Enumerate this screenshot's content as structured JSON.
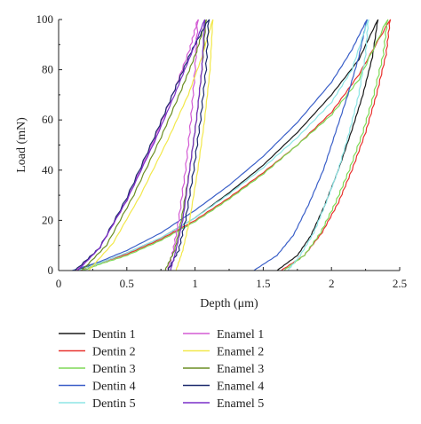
{
  "chart_data": {
    "type": "line",
    "xlabel": "Depth (μm)",
    "ylabel": "Load (mN)",
    "xlim": [
      0,
      2.5
    ],
    "ylim": [
      0,
      100
    ],
    "x_ticks": [
      "0",
      "0.5",
      "1",
      "1.5",
      "2",
      "2.5"
    ],
    "y_ticks": [
      "0",
      "20",
      "40",
      "60",
      "80",
      "100"
    ],
    "grid": false,
    "legend_position": "bottom",
    "series": [
      {
        "name": "Dentin 1",
        "color": "#1a1a1a",
        "loading": [
          [
            0.12,
            0
          ],
          [
            0.3,
            3
          ],
          [
            0.5,
            7
          ],
          [
            0.75,
            13
          ],
          [
            1.0,
            21
          ],
          [
            1.25,
            31
          ],
          [
            1.5,
            42
          ],
          [
            1.75,
            55
          ],
          [
            2.0,
            70
          ],
          [
            2.2,
            84
          ],
          [
            2.34,
            100
          ]
        ],
        "unloading": [
          [
            2.34,
            100
          ],
          [
            2.3,
            85
          ],
          [
            2.23,
            70
          ],
          [
            2.15,
            56
          ],
          [
            2.05,
            40
          ],
          [
            1.95,
            26
          ],
          [
            1.85,
            14
          ],
          [
            1.75,
            6
          ],
          [
            1.6,
            0
          ]
        ]
      },
      {
        "name": "Dentin 2",
        "color": "#e8322e",
        "loading": [
          [
            0.15,
            0
          ],
          [
            0.3,
            3
          ],
          [
            0.5,
            6.5
          ],
          [
            0.75,
            12.5
          ],
          [
            1.0,
            20
          ],
          [
            1.25,
            29
          ],
          [
            1.5,
            39
          ],
          [
            1.75,
            50
          ],
          [
            2.0,
            63
          ],
          [
            2.2,
            78
          ],
          [
            2.43,
            100
          ]
        ],
        "unloading": [
          [
            2.43,
            100
          ],
          [
            2.4,
            86
          ],
          [
            2.33,
            70
          ],
          [
            2.25,
            55
          ],
          [
            2.15,
            40
          ],
          [
            2.05,
            27
          ],
          [
            1.93,
            15
          ],
          [
            1.8,
            6
          ],
          [
            1.63,
            0
          ]
        ]
      },
      {
        "name": "Dentin 3",
        "color": "#7ed957",
        "loading": [
          [
            0.18,
            0
          ],
          [
            0.3,
            2.5
          ],
          [
            0.5,
            6
          ],
          [
            0.75,
            12
          ],
          [
            1.0,
            19.5
          ],
          [
            1.25,
            28.5
          ],
          [
            1.5,
            38.5
          ],
          [
            1.75,
            50
          ],
          [
            2.0,
            62
          ],
          [
            2.2,
            76
          ],
          [
            2.41,
            100
          ]
        ],
        "unloading": [
          [
            2.41,
            100
          ],
          [
            2.38,
            86
          ],
          [
            2.31,
            70
          ],
          [
            2.23,
            55
          ],
          [
            2.13,
            40
          ],
          [
            2.03,
            27
          ],
          [
            1.92,
            15
          ],
          [
            1.8,
            6
          ],
          [
            1.65,
            0
          ]
        ]
      },
      {
        "name": "Dentin 4",
        "color": "#3a5fc8",
        "loading": [
          [
            0.1,
            0
          ],
          [
            0.3,
            3.5
          ],
          [
            0.5,
            8
          ],
          [
            0.75,
            15
          ],
          [
            1.0,
            24
          ],
          [
            1.25,
            34
          ],
          [
            1.5,
            45.5
          ],
          [
            1.75,
            59
          ],
          [
            2.0,
            75
          ],
          [
            2.15,
            88
          ],
          [
            2.26,
            100
          ]
        ],
        "unloading": [
          [
            2.26,
            100
          ],
          [
            2.2,
            85
          ],
          [
            2.12,
            70
          ],
          [
            2.03,
            55
          ],
          [
            1.94,
            40
          ],
          [
            1.83,
            26
          ],
          [
            1.72,
            14
          ],
          [
            1.6,
            6
          ],
          [
            1.43,
            0
          ]
        ]
      },
      {
        "name": "Dentin 5",
        "color": "#8ee6e6",
        "loading": [
          [
            0.14,
            0
          ],
          [
            0.3,
            3
          ],
          [
            0.5,
            7
          ],
          [
            0.75,
            13
          ],
          [
            1.0,
            21
          ],
          [
            1.25,
            30.5
          ],
          [
            1.5,
            41
          ],
          [
            1.75,
            53
          ],
          [
            2.0,
            67
          ],
          [
            2.15,
            80
          ],
          [
            2.27,
            100
          ]
        ],
        "unloading": [
          [
            2.27,
            100
          ],
          [
            2.25,
            86
          ],
          [
            2.2,
            70
          ],
          [
            2.13,
            55
          ],
          [
            2.05,
            40
          ],
          [
            1.96,
            27
          ],
          [
            1.87,
            15
          ],
          [
            1.77,
            6
          ],
          [
            1.68,
            0
          ]
        ]
      },
      {
        "name": "Enamel 1",
        "color": "#d35ad3",
        "loading": [
          [
            0.13,
            0
          ],
          [
            0.3,
            9
          ],
          [
            0.5,
            28
          ],
          [
            0.7,
            52
          ],
          [
            0.85,
            72
          ],
          [
            0.96,
            88
          ],
          [
            1.02,
            100
          ]
        ],
        "unloading": [
          [
            1.02,
            100
          ],
          [
            1.0,
            80
          ],
          [
            0.97,
            60
          ],
          [
            0.93,
            40
          ],
          [
            0.88,
            20
          ],
          [
            0.84,
            8
          ],
          [
            0.8,
            0
          ]
        ]
      },
      {
        "name": "Enamel 2",
        "color": "#f2e84a",
        "loading": [
          [
            0.22,
            0
          ],
          [
            0.4,
            11
          ],
          [
            0.6,
            30
          ],
          [
            0.8,
            52
          ],
          [
            0.95,
            70
          ],
          [
            1.05,
            85
          ],
          [
            1.13,
            100
          ]
        ],
        "unloading": [
          [
            1.13,
            100
          ],
          [
            1.11,
            80
          ],
          [
            1.07,
            60
          ],
          [
            1.02,
            40
          ],
          [
            0.96,
            20
          ],
          [
            0.91,
            8
          ],
          [
            0.86,
            0
          ]
        ]
      },
      {
        "name": "Enamel 3",
        "color": "#6b8e23",
        "loading": [
          [
            0.17,
            0
          ],
          [
            0.35,
            10
          ],
          [
            0.55,
            30
          ],
          [
            0.75,
            53
          ],
          [
            0.9,
            72
          ],
          [
            1.01,
            87
          ],
          [
            1.08,
            100
          ]
        ],
        "unloading": [
          [
            1.08,
            100
          ],
          [
            1.05,
            80
          ],
          [
            1.01,
            60
          ],
          [
            0.96,
            40
          ],
          [
            0.9,
            20
          ],
          [
            0.85,
            8
          ],
          [
            0.78,
            0
          ]
        ]
      },
      {
        "name": "Enamel 4",
        "color": "#1c2a6e",
        "loading": [
          [
            0.12,
            0
          ],
          [
            0.3,
            9
          ],
          [
            0.5,
            29
          ],
          [
            0.7,
            53
          ],
          [
            0.85,
            72
          ],
          [
            0.97,
            87
          ],
          [
            1.1,
            100
          ]
        ],
        "unloading": [
          [
            1.1,
            100
          ],
          [
            1.08,
            80
          ],
          [
            1.04,
            60
          ],
          [
            0.99,
            40
          ],
          [
            0.93,
            20
          ],
          [
            0.88,
            8
          ],
          [
            0.8,
            0
          ]
        ]
      },
      {
        "name": "Enamel 5",
        "color": "#7a2fc8",
        "loading": [
          [
            0.14,
            0
          ],
          [
            0.3,
            9
          ],
          [
            0.5,
            28
          ],
          [
            0.7,
            51
          ],
          [
            0.85,
            70
          ],
          [
            0.97,
            86
          ],
          [
            1.07,
            100
          ]
        ],
        "unloading": [
          [
            1.07,
            100
          ],
          [
            1.05,
            80
          ],
          [
            1.01,
            60
          ],
          [
            0.96,
            40
          ],
          [
            0.91,
            20
          ],
          [
            0.86,
            8
          ],
          [
            0.82,
            0
          ]
        ]
      }
    ]
  }
}
